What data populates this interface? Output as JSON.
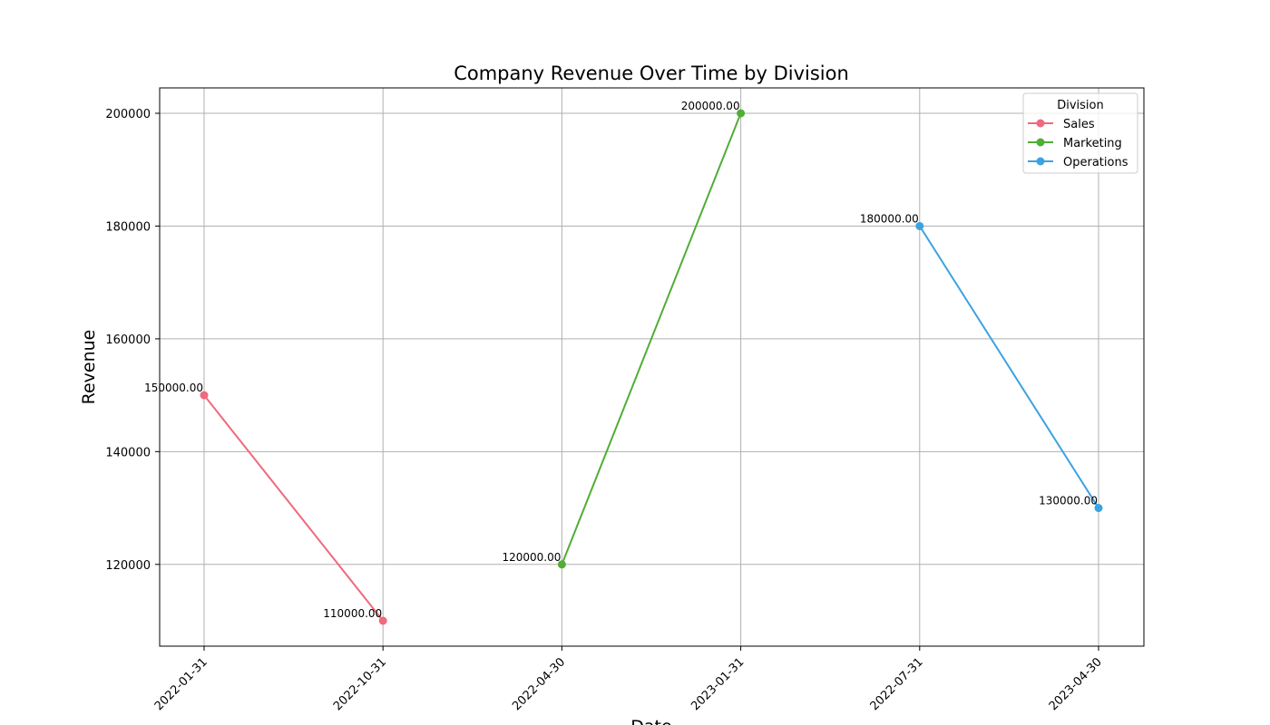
{
  "chart_data": {
    "type": "line",
    "title": "Company Revenue Over Time by Division",
    "xlabel": "Date",
    "ylabel": "Revenue",
    "categories": [
      "2022-01-31",
      "2022-10-31",
      "2022-04-30",
      "2023-01-31",
      "2022-07-31",
      "2023-04-30"
    ],
    "yticks": [
      120000,
      140000,
      160000,
      180000,
      200000
    ],
    "ylim": [
      105500,
      204500
    ],
    "grid": true,
    "legend": {
      "title": "Division",
      "position": "top-right"
    },
    "series": [
      {
        "name": "Sales",
        "color": "#f0697c",
        "points": [
          {
            "x": "2022-01-31",
            "y": 150000,
            "label": "150000.00"
          },
          {
            "x": "2022-10-31",
            "y": 110000,
            "label": "110000.00"
          }
        ]
      },
      {
        "name": "Marketing",
        "color": "#4fae34",
        "points": [
          {
            "x": "2022-04-30",
            "y": 120000,
            "label": "120000.00"
          },
          {
            "x": "2023-01-31",
            "y": 200000,
            "label": "200000.00"
          }
        ]
      },
      {
        "name": "Operations",
        "color": "#3ba3e0",
        "points": [
          {
            "x": "2022-07-31",
            "y": 180000,
            "label": "180000.00"
          },
          {
            "x": "2023-04-30",
            "y": 130000,
            "label": "130000.00"
          }
        ]
      }
    ]
  }
}
